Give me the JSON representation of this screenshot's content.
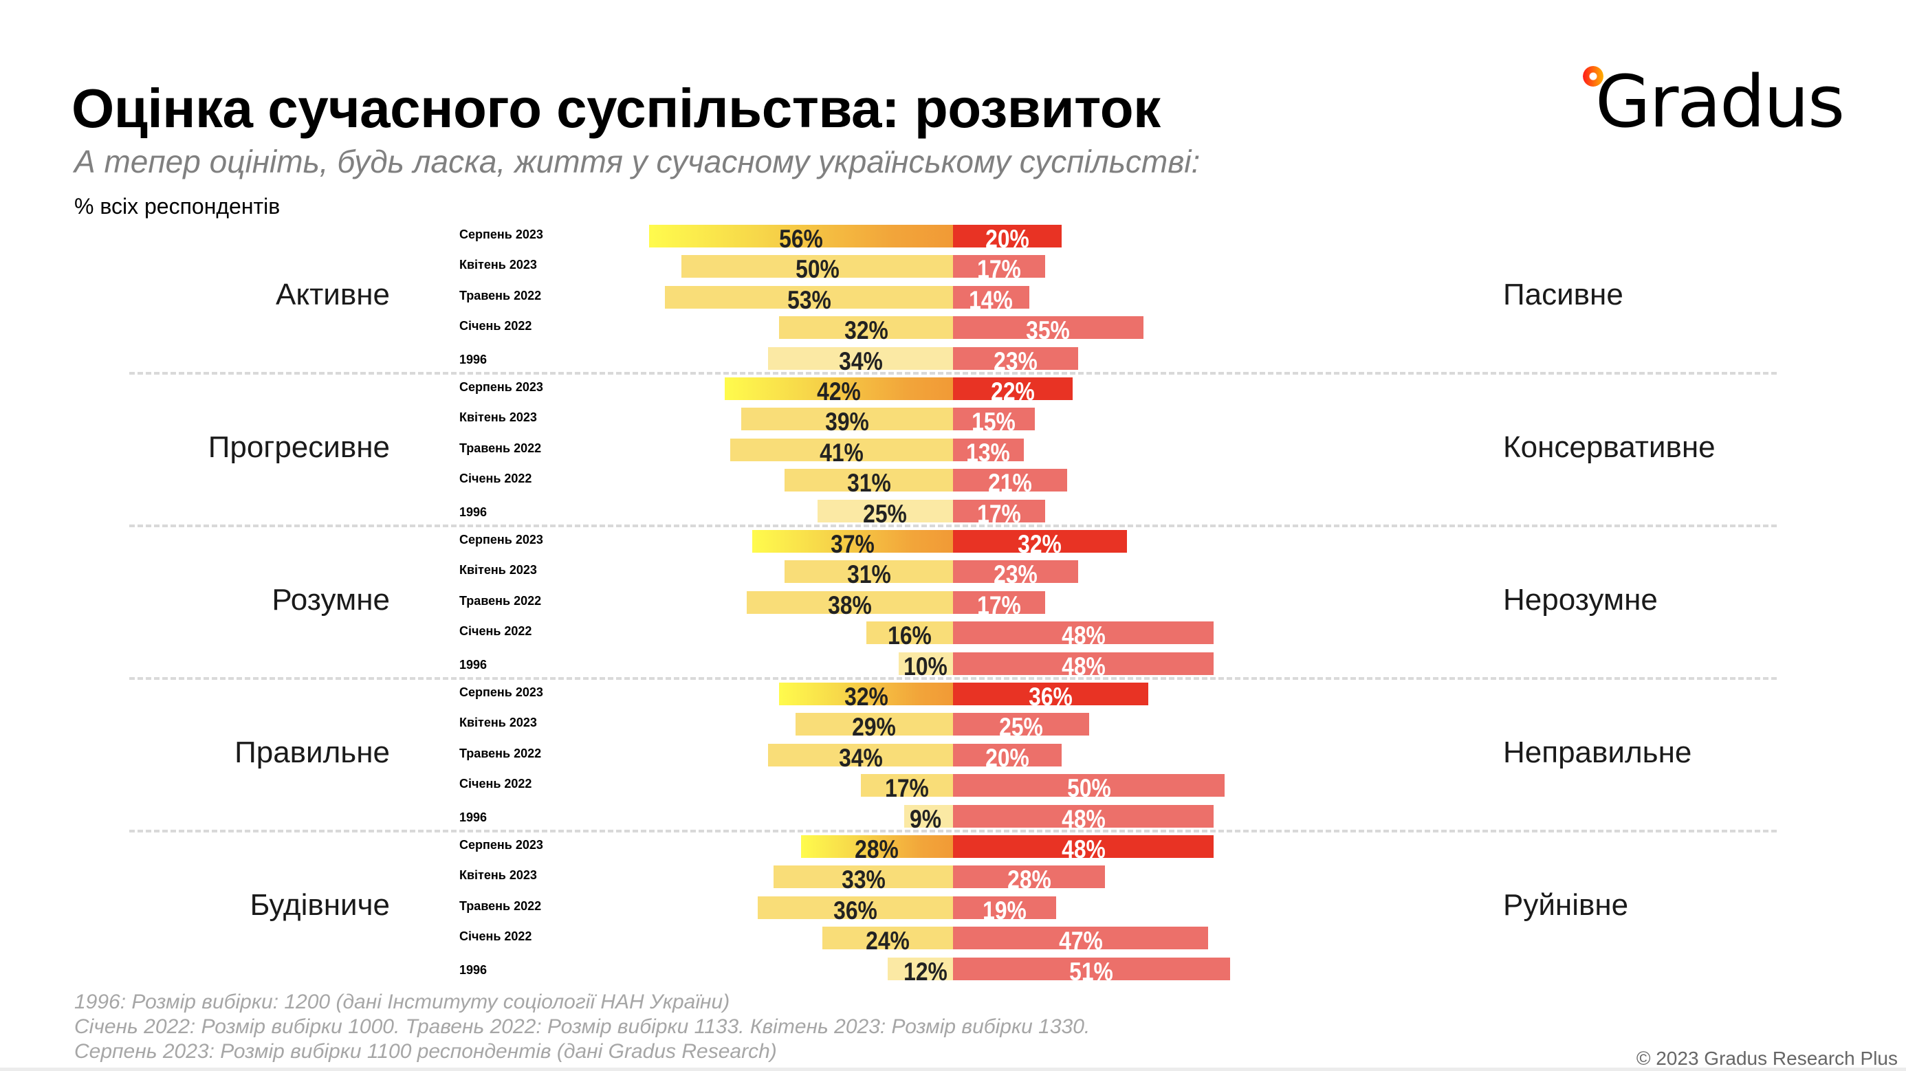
{
  "header": {
    "title": "Оцінка сучасного суспільства: розвиток",
    "subtitle": "А тепер оцініть, будь ласка, життя у сучасному українському суспільстві:",
    "unit_label": "% всіх респондентів"
  },
  "logo": {
    "text": "Gradus",
    "icon": "gradient-ring-icon"
  },
  "colors": {
    "left_latest_gradient": [
      "#fffb4d",
      "#f19a36"
    ],
    "left_default": "#f9dd78",
    "left_1996": "#fbe9a4",
    "right_latest": "#e83324",
    "right_default": "#ec706a",
    "divider": "#d9d9d9"
  },
  "chart_data": {
    "type": "bar",
    "orientation": "horizontal-diverging",
    "title": "Оцінка сучасного суспільства: розвиток",
    "unit": "%",
    "periods": [
      "Серпень 2023",
      "Квітень 2023",
      "Травень 2022",
      "Січень 2022",
      "1996"
    ],
    "groups": [
      {
        "left_label": "Активне",
        "right_label": "Пасивне",
        "left_values": [
          56,
          50,
          53,
          32,
          34
        ],
        "right_values": [
          20,
          17,
          14,
          35,
          23
        ]
      },
      {
        "left_label": "Прогресивне",
        "right_label": "Консервативне",
        "left_values": [
          42,
          39,
          41,
          31,
          25
        ],
        "right_values": [
          22,
          15,
          13,
          21,
          17
        ]
      },
      {
        "left_label": "Розумне",
        "right_label": "Нерозумне",
        "left_values": [
          37,
          31,
          38,
          16,
          10
        ],
        "right_values": [
          32,
          23,
          17,
          48,
          48
        ]
      },
      {
        "left_label": "Правильне",
        "right_label": "Неправильне",
        "left_values": [
          32,
          29,
          34,
          17,
          9
        ],
        "right_values": [
          36,
          25,
          20,
          50,
          48
        ]
      },
      {
        "left_label": "Будівниче",
        "right_label": "Руйнівне",
        "left_values": [
          28,
          33,
          36,
          24,
          12
        ],
        "right_values": [
          48,
          28,
          19,
          47,
          51
        ]
      }
    ],
    "grid": false,
    "legend": "none"
  },
  "footer": {
    "notes": [
      "1996: Розмір вибірки: 1200 (дані Інституту соціології НАН України)",
      "Січень 2022: Розмір вибірки 1000. Травень 2022: Розмір вибірки 1133. Квітень 2023: Розмір вибірки 1330.",
      "Серпень 2023: Розмір вибірки 1100 респондентів (дані Gradus Research)"
    ],
    "copyright": "© 2023 Gradus Research Plus"
  }
}
